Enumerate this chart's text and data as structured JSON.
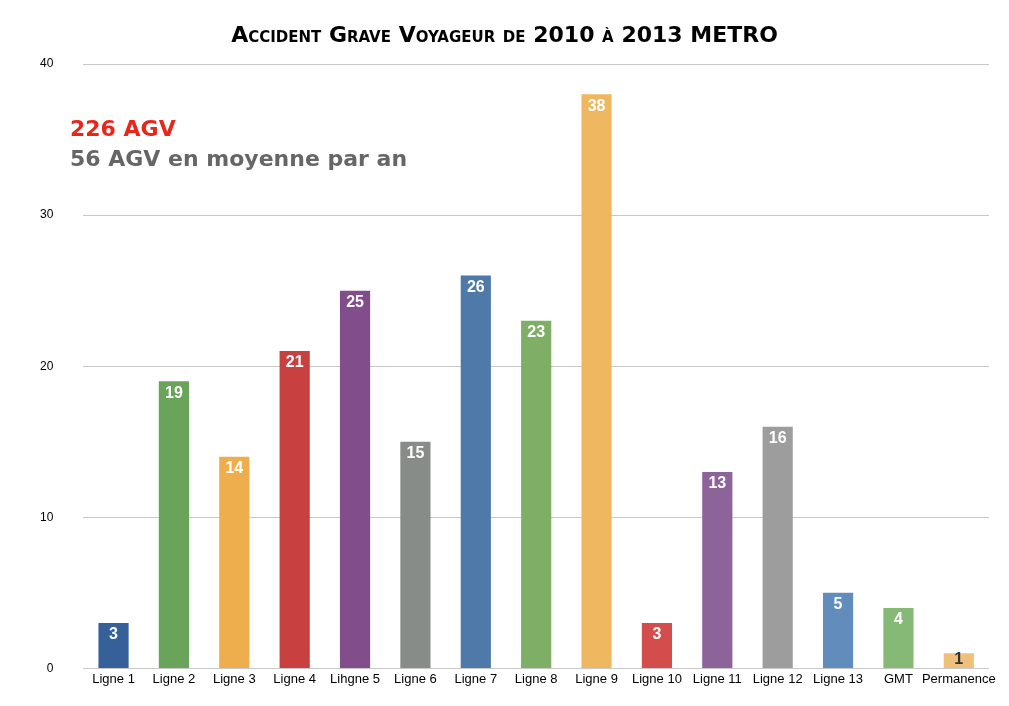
{
  "chart_data": {
    "type": "bar",
    "title": "Accident Grave Voyageur de 2010 à 2013 METRO",
    "categories": [
      "Ligne 1",
      "Ligne 2",
      "Ligne 3",
      "Ligne 4",
      "Lihgne 5",
      "Ligne 6",
      "Ligne 7",
      "Ligne 8",
      "Ligne 9",
      "Ligne 10",
      "Ligne 11",
      "Ligne 12",
      "Ligne 13",
      "GMT",
      "Permanence"
    ],
    "values": [
      3,
      19,
      14,
      21,
      25,
      15,
      26,
      23,
      38,
      3,
      13,
      16,
      5,
      4,
      1
    ],
    "colors": [
      "#35609a",
      "#6aa35a",
      "#eeae4e",
      "#c84040",
      "#814d8a",
      "#878c88",
      "#4f79a8",
      "#7fae67",
      "#eeb760",
      "#d24d4b",
      "#8c649a",
      "#9d9d9d",
      "#628cbb",
      "#86b976",
      "#efc07c"
    ],
    "ylim": [
      0,
      40
    ],
    "yticks": [
      0,
      10,
      20,
      30,
      40
    ],
    "grid": "y",
    "legend": false,
    "data_labels": true,
    "annotations": [
      "226 AGV",
      "56 AGV en moyenne par an"
    ]
  }
}
